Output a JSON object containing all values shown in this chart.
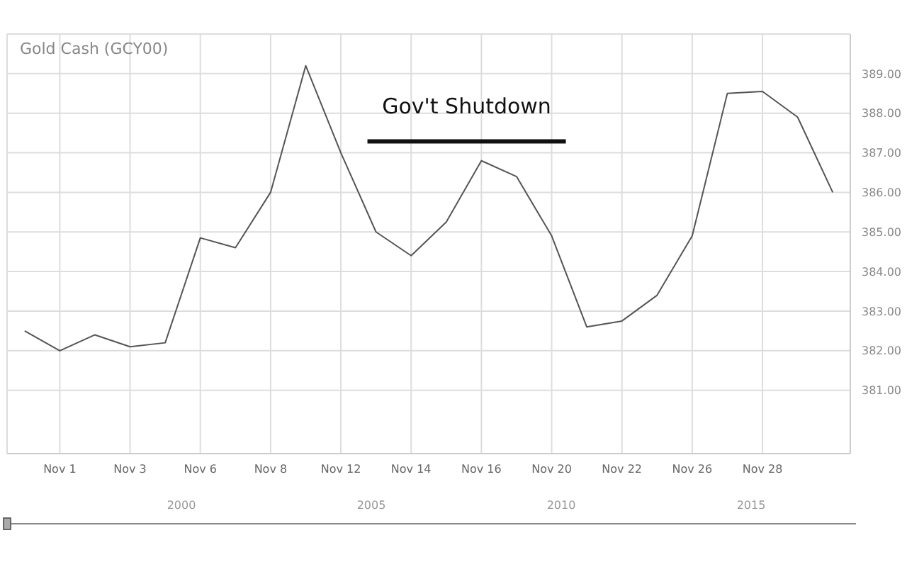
{
  "chart_data": {
    "type": "line",
    "title": "Gold Cash (GCY00)",
    "categories": [
      null,
      "Nov 1",
      null,
      "Nov 3",
      null,
      "Nov 6",
      null,
      "Nov 8",
      null,
      "Nov 12",
      null,
      "Nov 14",
      null,
      "Nov 16",
      null,
      "Nov 20",
      null,
      "Nov 22",
      null,
      "Nov 26",
      null,
      "Nov 28",
      null,
      null
    ],
    "series": [
      {
        "color": "#555555",
        "values": [
          382.5,
          382.0,
          382.4,
          382.1,
          382.2,
          384.85,
          384.6,
          386.0,
          389.2,
          387.0,
          385.0,
          384.4,
          385.25,
          386.8,
          386.4,
          384.9,
          382.6,
          382.75,
          383.4,
          384.9,
          388.5,
          388.55,
          387.9,
          386.0
        ]
      }
    ],
    "ylim": [
      379.4,
      390
    ],
    "yticks": [
      {
        "value": 381,
        "label": "381.00"
      },
      {
        "value": 382,
        "label": "382.00"
      },
      {
        "value": 383,
        "label": "383.00"
      },
      {
        "value": 384,
        "label": "384.00"
      },
      {
        "value": 385,
        "label": "385.00"
      },
      {
        "value": 386,
        "label": "386.00"
      },
      {
        "value": 387,
        "label": "387.00"
      },
      {
        "value": 388,
        "label": "388.00"
      },
      {
        "value": 389,
        "label": "389.00"
      }
    ],
    "grid": true,
    "marker": "none",
    "line_style": "solid",
    "annotations": [
      "Gov't Shutdown",
      "2000",
      "2005",
      "2010",
      "2015"
    ]
  }
}
